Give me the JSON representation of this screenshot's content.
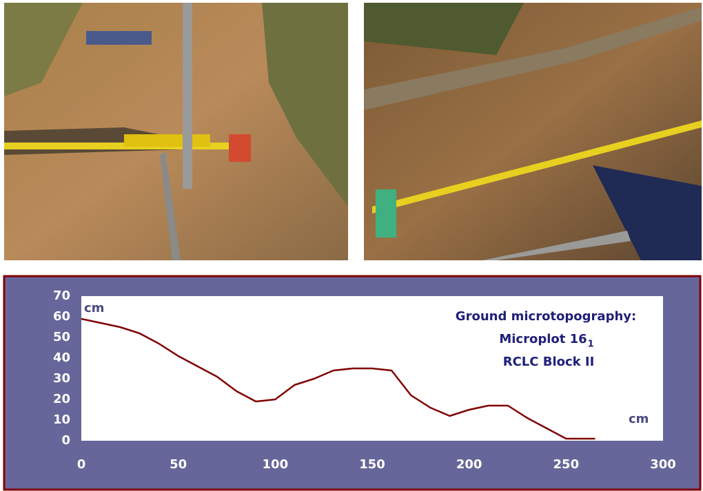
{
  "chart_data": {
    "type": "line",
    "title": "Ground microtopography:",
    "subtitle": "Microplot 16",
    "subtitle_subscript": "1",
    "note": "RCLC Block II",
    "x_label": "cm",
    "y_label": "cm",
    "x": [
      0,
      10,
      20,
      30,
      40,
      50,
      60,
      70,
      80,
      90,
      100,
      110,
      120,
      130,
      140,
      150,
      160,
      170,
      180,
      190,
      200,
      210,
      220,
      230,
      240,
      250,
      260,
      265
    ],
    "values": [
      59,
      57,
      55,
      52,
      47,
      41,
      36,
      31,
      24,
      19,
      20,
      27,
      30,
      34,
      35,
      35,
      34,
      22,
      16,
      12,
      15,
      17,
      17,
      11,
      6,
      1,
      1,
      1
    ],
    "color": "#800000",
    "xlim": [
      0,
      300
    ],
    "xticks": [
      0,
      50,
      100,
      150,
      200,
      250,
      300
    ],
    "ylim": [
      0,
      70
    ],
    "yticks": [
      0,
      10,
      20,
      30,
      40,
      50,
      60,
      70
    ],
    "grid": false
  }
}
